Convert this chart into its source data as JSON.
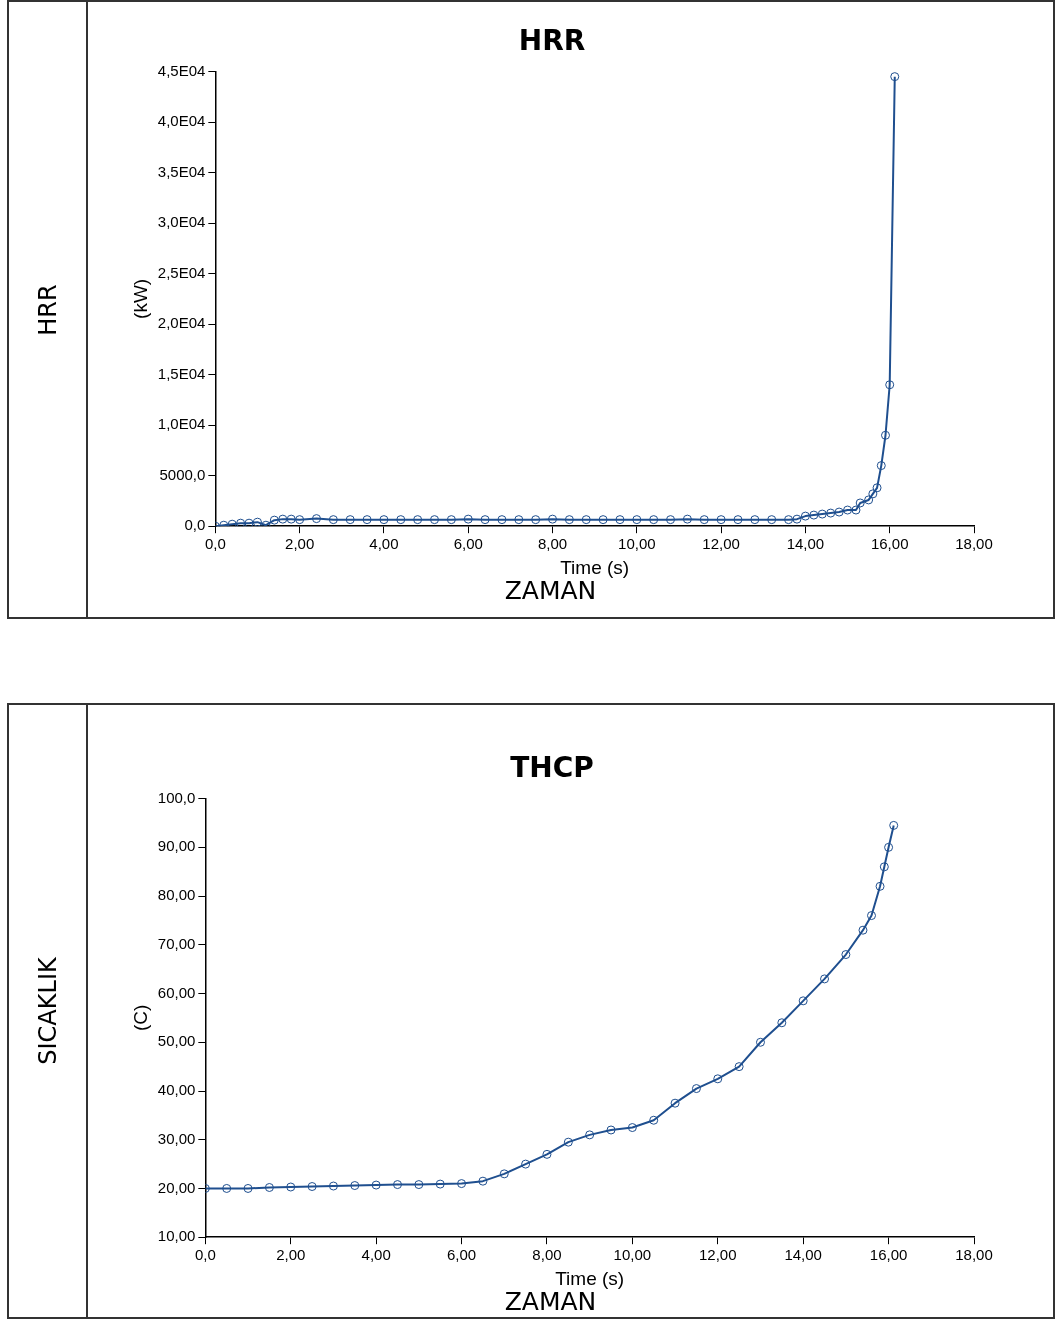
{
  "chart_data": [
    {
      "type": "line",
      "title": "HRR",
      "xlabel": "Time (s)",
      "ylabel": "(kW)",
      "annotations": [
        "HRR",
        "ZAMAN"
      ],
      "marker": "circle",
      "color": "#1f4f8f",
      "x": [
        0,
        0.2,
        0.4,
        0.6,
        0.8,
        1.0,
        1.2,
        1.4,
        1.6,
        1.8,
        2.0,
        2.4,
        2.8,
        3.2,
        3.6,
        4.0,
        4.4,
        4.8,
        5.2,
        5.6,
        6.0,
        6.4,
        6.8,
        7.2,
        7.6,
        8.0,
        8.4,
        8.8,
        9.2,
        9.6,
        10.0,
        10.4,
        10.8,
        11.2,
        11.6,
        12.0,
        12.4,
        12.8,
        13.2,
        13.6,
        13.8,
        14.0,
        14.2,
        14.4,
        14.6,
        14.8,
        15.0,
        15.2,
        15.3,
        15.5,
        15.6,
        15.7,
        15.8,
        15.9,
        16.0,
        16.12
      ],
      "values": [
        0,
        100,
        200,
        300,
        300,
        400,
        100,
        600,
        700,
        700,
        650,
        750,
        650,
        650,
        650,
        650,
        650,
        650,
        650,
        650,
        700,
        650,
        650,
        650,
        650,
        700,
        650,
        650,
        650,
        650,
        650,
        650,
        650,
        700,
        650,
        650,
        650,
        650,
        650,
        650,
        700,
        1000,
        1100,
        1200,
        1300,
        1400,
        1600,
        1600,
        2300,
        2600,
        3200,
        3800,
        6000,
        9000,
        14000,
        44500
      ],
      "xlim": [
        0,
        18
      ],
      "xticks": [
        {
          "value": 0,
          "label": "0,0"
        },
        {
          "value": 2,
          "label": "2,00"
        },
        {
          "value": 4,
          "label": "4,00"
        },
        {
          "value": 6,
          "label": "6,00"
        },
        {
          "value": 8,
          "label": "8,00"
        },
        {
          "value": 10,
          "label": "10,00"
        },
        {
          "value": 12,
          "label": "12,00"
        },
        {
          "value": 14,
          "label": "14,00"
        },
        {
          "value": 16,
          "label": "16,00"
        },
        {
          "value": 18,
          "label": "18,00"
        }
      ],
      "ylim": [
        0,
        45000
      ],
      "yticks": [
        {
          "value": 0,
          "label": "0,0"
        },
        {
          "value": 5000,
          "label": "5000,0"
        },
        {
          "value": 10000,
          "label": "1,0E04"
        },
        {
          "value": 15000,
          "label": "1,5E04"
        },
        {
          "value": 20000,
          "label": "2,0E04"
        },
        {
          "value": 25000,
          "label": "2,5E04"
        },
        {
          "value": 30000,
          "label": "3,0E04"
        },
        {
          "value": 35000,
          "label": "3,5E04"
        },
        {
          "value": 40000,
          "label": "4,0E04"
        },
        {
          "value": 45000,
          "label": "4,5E04"
        }
      ]
    },
    {
      "type": "line",
      "title": "THCP",
      "xlabel": "Time (s)",
      "ylabel": "(C)",
      "annotations": [
        "SICAKLIK",
        "ZAMAN"
      ],
      "marker": "circle",
      "color": "#1f4f8f",
      "x": [
        0,
        0.5,
        1,
        1.5,
        2,
        2.5,
        3,
        3.5,
        4,
        4.5,
        5,
        5.5,
        6,
        6.5,
        7,
        7.5,
        8,
        8.5,
        9,
        9.5,
        10,
        10.5,
        11,
        11.5,
        12,
        12.5,
        13,
        13.5,
        14,
        14.5,
        15,
        15.4,
        15.6,
        15.8,
        15.9,
        16.0,
        16.12
      ],
      "values": [
        20,
        20,
        20,
        20.2,
        20.3,
        20.4,
        20.5,
        20.6,
        20.7,
        20.8,
        20.8,
        20.9,
        21,
        21.5,
        23,
        25,
        27,
        29.5,
        31,
        32,
        32.5,
        34,
        37.5,
        40.5,
        42.5,
        45,
        50,
        54,
        58.5,
        63,
        68,
        73,
        76,
        82,
        86,
        90,
        94.5
      ],
      "xlim": [
        0,
        18
      ],
      "xticks": [
        {
          "value": 0,
          "label": "0,0"
        },
        {
          "value": 2,
          "label": "2,00"
        },
        {
          "value": 4,
          "label": "4,00"
        },
        {
          "value": 6,
          "label": "6,00"
        },
        {
          "value": 8,
          "label": "8,00"
        },
        {
          "value": 10,
          "label": "10,00"
        },
        {
          "value": 12,
          "label": "12,00"
        },
        {
          "value": 14,
          "label": "14,00"
        },
        {
          "value": 16,
          "label": "16,00"
        },
        {
          "value": 18,
          "label": "18,00"
        }
      ],
      "ylim": [
        10,
        100
      ],
      "yticks": [
        {
          "value": 10,
          "label": "10,00"
        },
        {
          "value": 20,
          "label": "20,00"
        },
        {
          "value": 30,
          "label": "30,00"
        },
        {
          "value": 40,
          "label": "40,00"
        },
        {
          "value": 50,
          "label": "50,00"
        },
        {
          "value": 60,
          "label": "60,00"
        },
        {
          "value": 70,
          "label": "70,00"
        },
        {
          "value": 80,
          "label": "80,00"
        },
        {
          "value": 90,
          "label": "90,00"
        },
        {
          "value": 100,
          "label": "100,0"
        }
      ]
    }
  ]
}
